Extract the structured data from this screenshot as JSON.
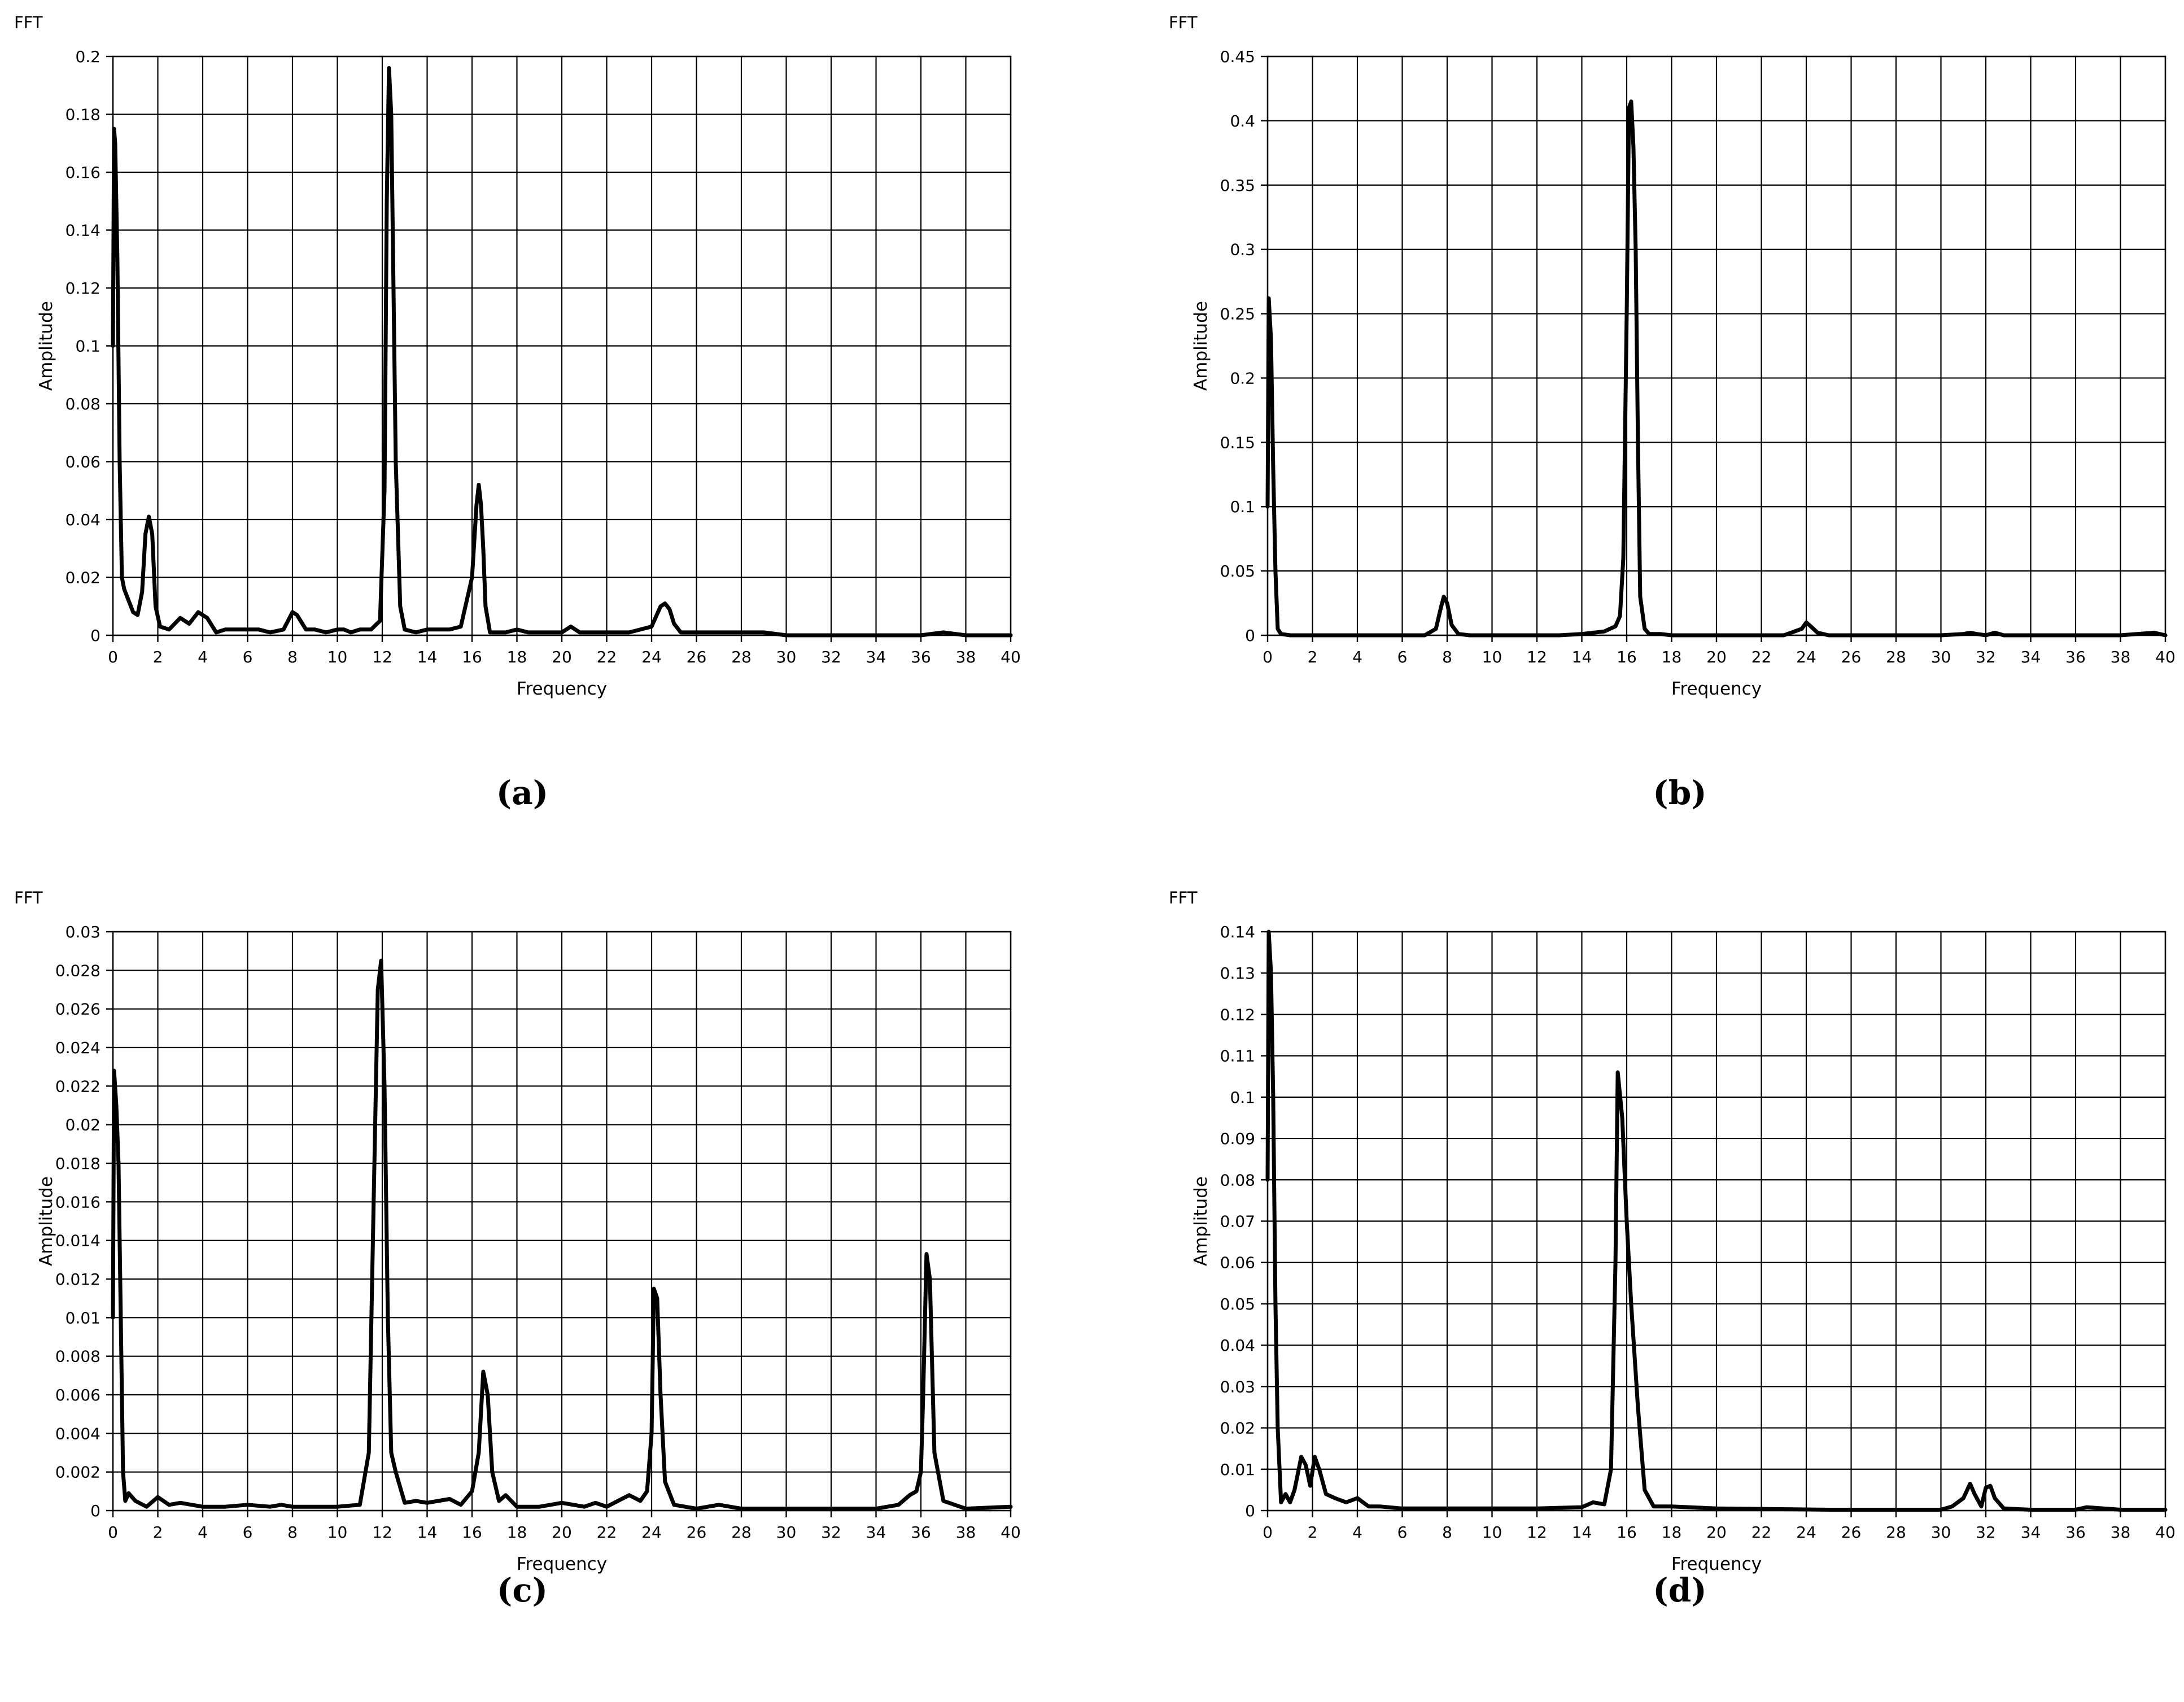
{
  "chart_data": [
    {
      "type": "line",
      "panel": "a",
      "caption": "(a)",
      "title": "FFT",
      "xlabel": "Frequency",
      "ylabel": "Amplitude",
      "xlim": [
        0,
        40
      ],
      "ylim": [
        0,
        0.2
      ],
      "xticks": [
        0,
        2,
        4,
        6,
        8,
        10,
        12,
        14,
        16,
        18,
        20,
        22,
        24,
        26,
        28,
        30,
        32,
        34,
        36,
        38,
        40
      ],
      "yticks": [
        0,
        0.02,
        0.04,
        0.06,
        0.08,
        0.1,
        0.12,
        0.14,
        0.16,
        0.18,
        0.2
      ],
      "ytick_labels": [
        "0",
        "0.02",
        "0.04",
        "0.06",
        "0.08",
        "0.1",
        "0.12",
        "0.14",
        "0.16",
        "0.18",
        "0.2"
      ],
      "grid": true,
      "series": [
        {
          "x": [
            0,
            0.05,
            0.1,
            0.2,
            0.3,
            0.4,
            0.5,
            0.7,
            0.9,
            1.1,
            1.3,
            1.45,
            1.6,
            1.75,
            1.9,
            2.1,
            2.5,
            3.0,
            3.4,
            3.8,
            4.2,
            4.6,
            5.0,
            5.5,
            6.0,
            6.5,
            7.0,
            7.6,
            8.0,
            8.2,
            8.6,
            9.0,
            9.5,
            10.0,
            10.3,
            10.6,
            11.0,
            11.5,
            11.9,
            12.1,
            12.2,
            12.3,
            12.4,
            12.5,
            12.6,
            12.8,
            13.0,
            13.5,
            14.0,
            14.5,
            15.0,
            15.5,
            16.0,
            16.2,
            16.3,
            16.4,
            16.5,
            16.6,
            16.8,
            17.0,
            17.5,
            18.0,
            18.5,
            19.0,
            19.5,
            20.0,
            20.4,
            20.8,
            21.5,
            22.0,
            23.0,
            24.0,
            24.4,
            24.6,
            24.8,
            25.0,
            25.3,
            25.8,
            27,
            28,
            29,
            30,
            32,
            34,
            36,
            37,
            38,
            40
          ],
          "y": [
            0.1,
            0.175,
            0.17,
            0.13,
            0.06,
            0.02,
            0.016,
            0.012,
            0.008,
            0.007,
            0.015,
            0.035,
            0.041,
            0.035,
            0.01,
            0.003,
            0.002,
            0.006,
            0.004,
            0.008,
            0.006,
            0.001,
            0.002,
            0.002,
            0.002,
            0.002,
            0.001,
            0.002,
            0.008,
            0.007,
            0.002,
            0.002,
            0.001,
            0.002,
            0.002,
            0.001,
            0.002,
            0.002,
            0.005,
            0.05,
            0.15,
            0.196,
            0.18,
            0.12,
            0.06,
            0.01,
            0.002,
            0.001,
            0.002,
            0.002,
            0.002,
            0.003,
            0.02,
            0.045,
            0.052,
            0.045,
            0.03,
            0.01,
            0.001,
            0.001,
            0.001,
            0.002,
            0.001,
            0.001,
            0.001,
            0.001,
            0.003,
            0.001,
            0.001,
            0.001,
            0.001,
            0.003,
            0.01,
            0.011,
            0.009,
            0.004,
            0.001,
            0.001,
            0.001,
            0.001,
            0.001,
            0,
            0,
            0,
            0,
            0.001,
            0,
            0
          ]
        }
      ]
    },
    {
      "type": "line",
      "panel": "b",
      "caption": "(b)",
      "title": "FFT",
      "xlabel": "Frequency",
      "ylabel": "Amplitude",
      "xlim": [
        0,
        40
      ],
      "ylim": [
        0,
        0.45
      ],
      "xticks": [
        0,
        2,
        4,
        6,
        8,
        10,
        12,
        14,
        16,
        18,
        20,
        22,
        24,
        26,
        28,
        30,
        32,
        34,
        36,
        38,
        40
      ],
      "yticks": [
        0,
        0.05,
        0.1,
        0.15,
        0.2,
        0.25,
        0.3,
        0.35,
        0.4,
        0.45
      ],
      "ytick_labels": [
        "0",
        "0.05",
        "0.1",
        "0.15",
        "0.2",
        "0.25",
        "0.3",
        "0.35",
        "0.4",
        "0.45"
      ],
      "grid": true,
      "series": [
        {
          "x": [
            0,
            0.05,
            0.15,
            0.25,
            0.35,
            0.45,
            0.6,
            1,
            2,
            3,
            4,
            5,
            6,
            7,
            7.5,
            7.7,
            7.85,
            8.0,
            8.2,
            8.5,
            9,
            10,
            11,
            12,
            13,
            14,
            15,
            15.5,
            15.7,
            15.85,
            16.0,
            16.1,
            16.2,
            16.3,
            16.4,
            16.5,
            16.6,
            16.8,
            17,
            17.5,
            18,
            19,
            20,
            22,
            23,
            23.8,
            24.0,
            24.2,
            24.5,
            25,
            26,
            28,
            30,
            31,
            31.3,
            31.6,
            32,
            32.4,
            32.8,
            34,
            36,
            38,
            39.5,
            40
          ],
          "y": [
            0.1,
            0.262,
            0.23,
            0.13,
            0.05,
            0.005,
            0.001,
            0,
            0,
            0,
            0,
            0,
            0,
            0,
            0.005,
            0.02,
            0.03,
            0.025,
            0.008,
            0.001,
            0,
            0,
            0,
            0,
            0,
            0.001,
            0.003,
            0.007,
            0.015,
            0.06,
            0.25,
            0.41,
            0.415,
            0.38,
            0.3,
            0.15,
            0.03,
            0.005,
            0.001,
            0.001,
            0,
            0,
            0,
            0,
            0,
            0.005,
            0.01,
            0.007,
            0.002,
            0,
            0,
            0,
            0,
            0.001,
            0.002,
            0.001,
            0,
            0.002,
            0,
            0,
            0,
            0,
            0.002,
            0
          ]
        }
      ]
    },
    {
      "type": "line",
      "panel": "c",
      "caption": "(c)",
      "title": "FFT",
      "xlabel": "Frequency",
      "ylabel": "Amplitude",
      "xlim": [
        0,
        40
      ],
      "ylim": [
        0,
        0.03
      ],
      "xticks": [
        0,
        2,
        4,
        6,
        8,
        10,
        12,
        14,
        16,
        18,
        20,
        22,
        24,
        26,
        28,
        30,
        32,
        34,
        36,
        38,
        40
      ],
      "yticks": [
        0,
        0.002,
        0.004,
        0.006,
        0.008,
        0.01,
        0.012,
        0.014,
        0.016,
        0.018,
        0.02,
        0.022,
        0.024,
        0.026,
        0.028,
        0.03
      ],
      "ytick_labels": [
        "0",
        "0.002",
        "0.004",
        "0.006",
        "0.008",
        "0.01",
        "0.012",
        "0.014",
        "0.016",
        "0.018",
        "0.02",
        "0.022",
        "0.024",
        "0.026",
        "0.028",
        "0.03"
      ],
      "grid": true,
      "series": [
        {
          "x": [
            0,
            0.05,
            0.15,
            0.25,
            0.35,
            0.45,
            0.55,
            0.7,
            1.0,
            1.5,
            2.0,
            2.5,
            3.0,
            4.0,
            5.0,
            6.0,
            7.0,
            7.5,
            8.0,
            9.0,
            10.0,
            11.0,
            11.4,
            11.6,
            11.8,
            11.95,
            12.1,
            12.25,
            12.4,
            12.6,
            13.0,
            13.5,
            14.0,
            15.0,
            15.5,
            16.0,
            16.3,
            16.5,
            16.7,
            16.9,
            17.2,
            17.5,
            18.0,
            19.0,
            20.0,
            21.0,
            21.5,
            22.0,
            22.5,
            23.0,
            23.5,
            23.8,
            24.0,
            24.1,
            24.25,
            24.4,
            24.6,
            25.0,
            26.0,
            27.0,
            28.0,
            30.0,
            32.0,
            34.0,
            35.0,
            35.5,
            35.8,
            36.0,
            36.1,
            36.25,
            36.4,
            36.6,
            37.0,
            38.0,
            40.0
          ],
          "y": [
            0.01,
            0.0228,
            0.021,
            0.018,
            0.01,
            0.002,
            0.0005,
            0.0009,
            0.0005,
            0.0002,
            0.0007,
            0.0003,
            0.0004,
            0.0002,
            0.0002,
            0.0003,
            0.0002,
            0.0003,
            0.0002,
            0.0002,
            0.0002,
            0.0003,
            0.003,
            0.015,
            0.027,
            0.0285,
            0.022,
            0.01,
            0.003,
            0.002,
            0.0004,
            0.0005,
            0.0004,
            0.0006,
            0.0003,
            0.001,
            0.003,
            0.0072,
            0.006,
            0.002,
            0.0005,
            0.0008,
            0.0002,
            0.0002,
            0.0004,
            0.0002,
            0.0004,
            0.0002,
            0.0005,
            0.0008,
            0.0005,
            0.001,
            0.004,
            0.0115,
            0.011,
            0.006,
            0.0015,
            0.0003,
            0.0001,
            0.0003,
            0.0001,
            0.0001,
            0.0001,
            0.0001,
            0.0003,
            0.0008,
            0.001,
            0.002,
            0.006,
            0.0133,
            0.012,
            0.003,
            0.0005,
            0.0001,
            0.0002
          ]
        }
      ]
    },
    {
      "type": "line",
      "panel": "d",
      "caption": "(d)",
      "title": "FFT",
      "xlabel": "Frequency",
      "ylabel": "Amplitude",
      "xlim": [
        0,
        40
      ],
      "ylim": [
        0,
        0.14
      ],
      "xticks": [
        0,
        2,
        4,
        6,
        8,
        10,
        12,
        14,
        16,
        18,
        20,
        22,
        24,
        26,
        28,
        30,
        32,
        34,
        36,
        38,
        40
      ],
      "yticks": [
        0,
        0.01,
        0.02,
        0.03,
        0.04,
        0.05,
        0.06,
        0.07,
        0.08,
        0.09,
        0.1,
        0.11,
        0.12,
        0.13,
        0.14
      ],
      "ytick_labels": [
        "0",
        "0.01",
        "0.02",
        "0.03",
        "0.04",
        "0.05",
        "0.06",
        "0.07",
        "0.08",
        "0.09",
        "0.1",
        "0.11",
        "0.12",
        "0.13",
        "0.14"
      ],
      "grid": true,
      "series": [
        {
          "x": [
            0,
            0.05,
            0.15,
            0.25,
            0.35,
            0.45,
            0.6,
            0.8,
            1.0,
            1.2,
            1.5,
            1.7,
            1.9,
            2.1,
            2.3,
            2.6,
            3.0,
            3.5,
            4.0,
            4.5,
            5.0,
            6.0,
            8.0,
            10.0,
            12.0,
            14.0,
            14.5,
            15.0,
            15.3,
            15.5,
            15.6,
            15.8,
            16.0,
            16.2,
            16.5,
            16.8,
            17.2,
            18.0,
            20.0,
            25.0,
            30.0,
            30.5,
            31.0,
            31.3,
            31.5,
            31.8,
            32.0,
            32.2,
            32.4,
            32.8,
            34.0,
            36.0,
            36.5,
            38.0,
            40.0
          ],
          "y": [
            0.08,
            0.14,
            0.13,
            0.1,
            0.05,
            0.02,
            0.002,
            0.004,
            0.002,
            0.005,
            0.013,
            0.011,
            0.006,
            0.013,
            0.01,
            0.004,
            0.003,
            0.002,
            0.003,
            0.001,
            0.001,
            0.0005,
            0.0005,
            0.0005,
            0.0005,
            0.0008,
            0.002,
            0.0015,
            0.01,
            0.06,
            0.106,
            0.095,
            0.07,
            0.05,
            0.025,
            0.005,
            0.001,
            0.001,
            0.0005,
            0.0002,
            0.0002,
            0.001,
            0.003,
            0.0065,
            0.004,
            0.001,
            0.0055,
            0.006,
            0.003,
            0.0005,
            0.0002,
            0.0002,
            0.0008,
            0.0002,
            0.0002
          ]
        }
      ]
    }
  ]
}
